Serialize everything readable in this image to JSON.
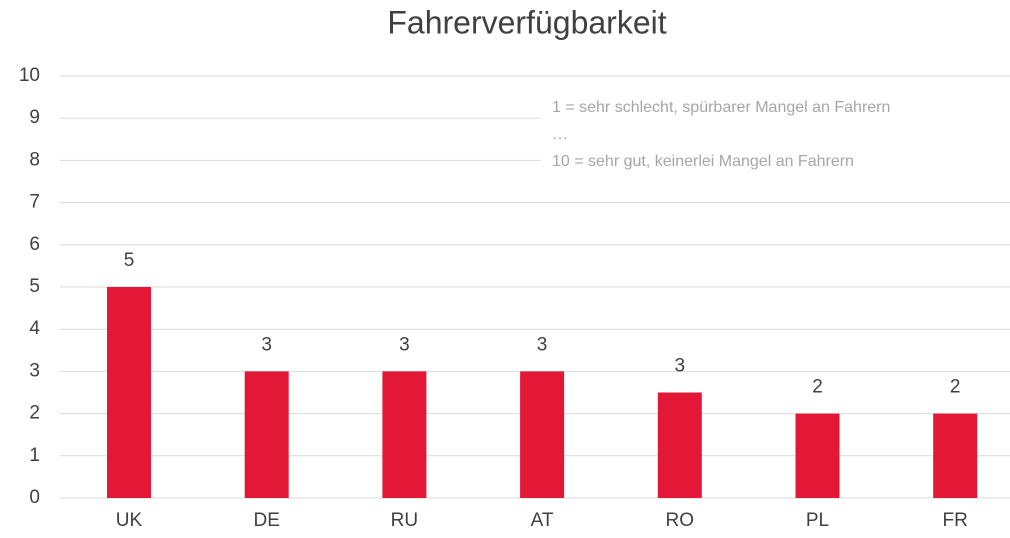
{
  "chart_data": {
    "type": "bar",
    "title": "Fahrerverfügbarkeit",
    "categories": [
      "UK",
      "DE",
      "RU",
      "AT",
      "RO",
      "PL",
      "FR"
    ],
    "values": [
      5,
      3,
      3,
      3,
      2.5,
      2,
      2
    ],
    "value_labels": [
      "5",
      "3",
      "3",
      "3",
      "3",
      "2",
      "2"
    ],
    "color": "#e31837",
    "ylim": [
      0,
      10
    ],
    "yticks": [
      0,
      1,
      2,
      3,
      4,
      5,
      6,
      7,
      8,
      9,
      10
    ],
    "grid": true,
    "annotations": [
      "1 = sehr schlecht, spürbarer Mangel an Fahrern",
      "…",
      "10 = sehr gut, keinerlei Mangel an Fahrern"
    ]
  }
}
